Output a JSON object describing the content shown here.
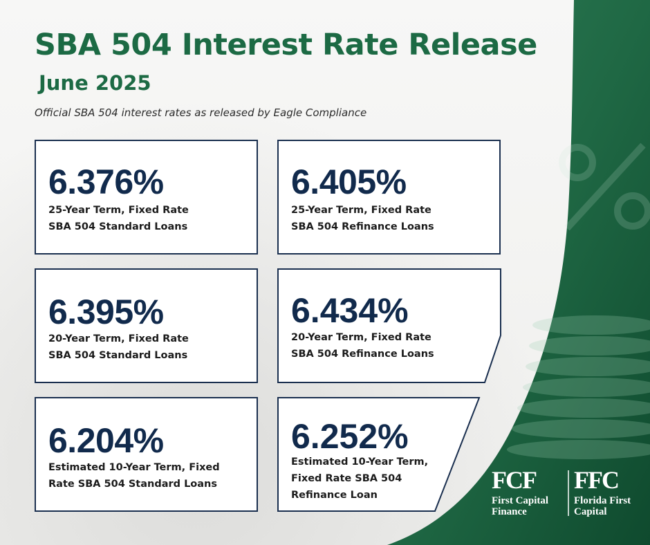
{
  "header": {
    "title_bold": "SBA 504",
    "title_rest": " Interest Rate Release",
    "subtitle": "June 2025",
    "tagline": "Official SBA 504 interest rates as released by Eagle Compliance"
  },
  "cards": [
    {
      "rate": "6.376%",
      "line1": "25-Year Term, Fixed Rate",
      "line2": "SBA 504 Standard Loans"
    },
    {
      "rate": "6.405%",
      "line1": "25-Year Term, Fixed Rate",
      "line2": "SBA 504 Refinance Loans"
    },
    {
      "rate": "6.395%",
      "line1": "20-Year Term, Fixed Rate",
      "line2": "SBA 504 Standard Loans"
    },
    {
      "rate": "6.434%",
      "line1": "20-Year Term, Fixed Rate",
      "line2": "SBA 504 Refinance Loans"
    },
    {
      "rate": "6.204%",
      "line1": "Estimated 10-Year Term, Fixed",
      "line2": "Rate SBA 504 Standard Loans"
    },
    {
      "rate": "6.252%",
      "line1": "Estimated 10-Year Term,",
      "line2": "Fixed Rate SBA 504",
      "line3": "Refinance Loan"
    }
  ],
  "logos": {
    "fcf_mark": "FCF",
    "fcf_name_1": "First Capital",
    "fcf_name_2": "Finance",
    "ffc_mark": "FFC",
    "ffc_name_1": "Florida First",
    "ffc_name_2": "Capital"
  },
  "colors": {
    "brand_green": "#1c6a44",
    "navy": "#112a4c",
    "border": "#1a2f4f"
  }
}
